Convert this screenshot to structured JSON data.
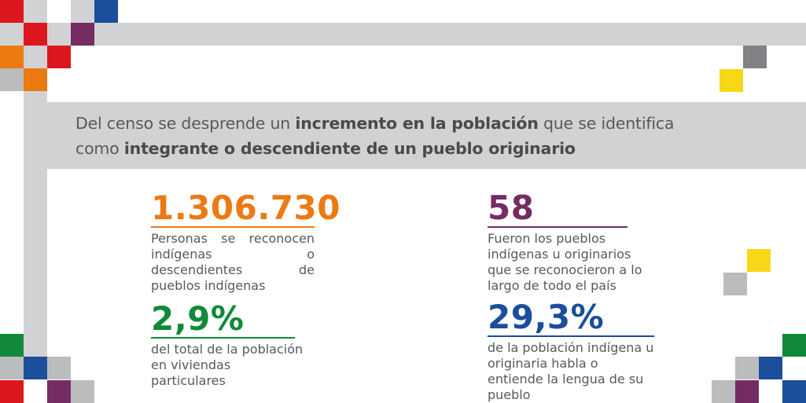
{
  "heading": {
    "part1": "Del censo se desprende un ",
    "bold1": "incremento en la población",
    "part2": " que se identifica",
    "part3": "como ",
    "bold2": "integrante o descendiente de un pueblo originario"
  },
  "stats": [
    {
      "value": "1.306.730",
      "description": "Personas se reconocen indígenas o descendientes de pueblos indígenas",
      "color": "#ec7a11"
    },
    {
      "value": "58",
      "description": "Fueron los pueblos indígenas u originarios que se reconocieron a lo largo de todo el país",
      "color": "#742c62"
    },
    {
      "value": "2,9%",
      "description": "del total de la población en viviendas particulares",
      "color": "#108a38"
    },
    {
      "value": "29,3%",
      "description": "de la población indígena u originaria habla o entiende la lengua de su pueblo",
      "color": "#1b4e9b"
    }
  ]
}
